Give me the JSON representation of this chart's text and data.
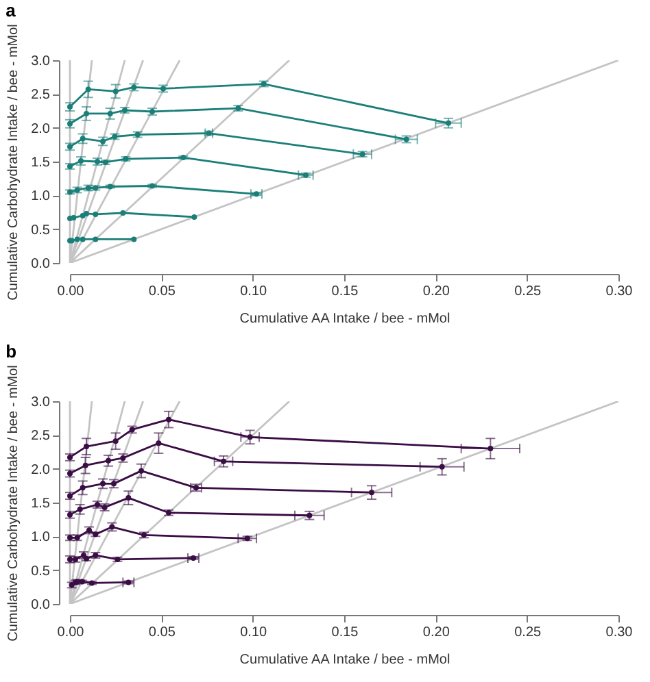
{
  "chart_data": [
    {
      "type": "line",
      "title": "a",
      "xlabel": "Cumulative AA Intake / bee - mMol",
      "ylabel": "Cumulative Carbohydrate Intake / bee - mMol",
      "xlim": [
        0,
        0.3
      ],
      "ylim": [
        0,
        3
      ],
      "xticks": [
        {
          "value": 0,
          "label": "0.00"
        },
        0.05,
        {
          "value": 0.1,
          "label": "0.10"
        },
        0.15,
        {
          "value": 0.2,
          "label": "0.20"
        },
        0.25,
        {
          "value": 0.3,
          "label": "0.30"
        }
      ],
      "yticks": [
        {
          "value": 0,
          "label": "0.0"
        },
        0.5,
        {
          "value": 1,
          "label": "1.0"
        },
        1.5,
        {
          "value": 2,
          "label": "2.0"
        },
        2.5,
        {
          "value": 3,
          "label": "3.0"
        }
      ],
      "grid": false,
      "legend": false,
      "marker": "circle",
      "line_style": "solid",
      "ref_lines": [
        {
          "axis": "x",
          "value": 0,
          "color": "#c4c4c4"
        }
      ],
      "series": [
        {
          "color": "#c4c4c4",
          "marker": "none",
          "x": [
            0,
            0.012
          ],
          "values": [
            0,
            3
          ]
        },
        {
          "color": "#c4c4c4",
          "marker": "none",
          "x": [
            0,
            0.03
          ],
          "values": [
            0,
            3
          ]
        },
        {
          "color": "#c4c4c4",
          "marker": "none",
          "x": [
            0,
            0.04
          ],
          "values": [
            0,
            3
          ]
        },
        {
          "color": "#c4c4c4",
          "marker": "none",
          "x": [
            0,
            0.06
          ],
          "values": [
            0,
            3
          ]
        },
        {
          "color": "#c4c4c4",
          "marker": "none",
          "x": [
            0,
            0.12
          ],
          "values": [
            0,
            3
          ]
        },
        {
          "color": "#c4c4c4",
          "marker": "none",
          "x": [
            0,
            0.3
          ],
          "values": [
            0,
            3
          ]
        },
        {
          "color": "#1b7f79",
          "x": [
            0,
            0.01,
            0.025,
            0.035,
            0.051,
            0.106,
            0.207
          ],
          "values": [
            2.31,
            2.57,
            2.54,
            2.6,
            2.58,
            2.65,
            2.07
          ],
          "errors": [
            0.06,
            0.12,
            0.1,
            0.05,
            0.05,
            0.04,
            0.07
          ],
          "xerrors": [
            null,
            null,
            null,
            null,
            null,
            null,
            0.007
          ]
        },
        {
          "color": "#1b7f79",
          "x": [
            0,
            0.009,
            0.022,
            0.03,
            0.045,
            0.092,
            0.184
          ],
          "values": [
            2.06,
            2.21,
            2.21,
            2.26,
            2.24,
            2.29,
            1.83
          ],
          "errors": [
            0.06,
            0.1,
            0.08,
            0.04,
            0.05,
            0.04,
            0.05
          ],
          "xerrors": [
            null,
            null,
            null,
            null,
            null,
            null,
            0.006
          ]
        },
        {
          "color": "#1b7f79",
          "x": [
            0,
            0.007,
            0.018,
            0.0245,
            0.037,
            0.076,
            0.16
          ],
          "values": [
            1.72,
            1.84,
            1.8,
            1.87,
            1.9,
            1.92,
            1.61
          ],
          "errors": [
            0.05,
            0.07,
            0.06,
            0.04,
            0.04,
            0.03,
            0.04
          ],
          "xerrors": [
            null,
            null,
            null,
            null,
            null,
            0.002,
            0.005
          ]
        },
        {
          "color": "#1b7f79",
          "x": [
            0,
            0.006,
            0.015,
            0.0195,
            0.0305,
            0.062,
            0.129
          ],
          "values": [
            1.43,
            1.51,
            1.5,
            1.49,
            1.54,
            1.56,
            1.3
          ],
          "errors": [
            0.04,
            0.06,
            0.05,
            0.03,
            0.03,
            0.02,
            0.03
          ],
          "xerrors": [
            null,
            null,
            null,
            null,
            null,
            null,
            0.004
          ]
        },
        {
          "color": "#1b7f79",
          "x": [
            0,
            0.004,
            0.01,
            0.014,
            0.022,
            0.045,
            0.102
          ],
          "values": [
            1.05,
            1.08,
            1.11,
            1.11,
            1.13,
            1.14,
            1.02
          ],
          "errors": [
            0.03,
            0.04,
            0.04,
            0.03,
            0.02,
            0.02,
            0.02
          ],
          "xerrors": [
            null,
            null,
            null,
            null,
            null,
            null,
            0.003
          ]
        },
        {
          "color": "#1b7f79",
          "x": [
            0,
            0.002,
            0.007,
            0.009,
            0.014,
            0.029,
            0.068
          ],
          "values": [
            0.66,
            0.67,
            0.7,
            0.73,
            0.72,
            0.74,
            0.68
          ]
        },
        {
          "color": "#1b7f79",
          "x": [
            0,
            0.001,
            0.004,
            0.007,
            0.014,
            0.035
          ],
          "values": [
            0.33,
            0.33,
            0.35,
            0.35,
            0.35,
            0.35
          ]
        }
      ]
    },
    {
      "type": "line",
      "title": "b",
      "xlabel": "Cumulative AA Intake / bee - mMol",
      "ylabel": "Cumulative Carbohydrate Intake / bee - mMol",
      "xlim": [
        0,
        0.3
      ],
      "ylim": [
        0,
        3
      ],
      "xticks": [
        {
          "value": 0,
          "label": "0.00"
        },
        0.05,
        {
          "value": 0.1,
          "label": "0.10"
        },
        0.15,
        {
          "value": 0.2,
          "label": "0.20"
        },
        0.25,
        {
          "value": 0.3,
          "label": "0.30"
        }
      ],
      "yticks": [
        {
          "value": 0,
          "label": "0.0"
        },
        0.5,
        {
          "value": 1,
          "label": "1.0"
        },
        1.5,
        {
          "value": 2,
          "label": "2.0"
        },
        2.5,
        {
          "value": 3,
          "label": "3.0"
        }
      ],
      "grid": false,
      "legend": false,
      "marker": "circle",
      "line_style": "solid",
      "ref_lines": [
        {
          "axis": "x",
          "value": 0,
          "color": "#c4c4c4"
        }
      ],
      "series": [
        {
          "color": "#c4c4c4",
          "marker": "none",
          "x": [
            0,
            0.012
          ],
          "values": [
            0,
            3
          ]
        },
        {
          "color": "#c4c4c4",
          "marker": "none",
          "x": [
            0,
            0.03
          ],
          "values": [
            0,
            3
          ]
        },
        {
          "color": "#c4c4c4",
          "marker": "none",
          "x": [
            0,
            0.04
          ],
          "values": [
            0,
            3
          ]
        },
        {
          "color": "#c4c4c4",
          "marker": "none",
          "x": [
            0,
            0.06
          ],
          "values": [
            0,
            3
          ]
        },
        {
          "color": "#c4c4c4",
          "marker": "none",
          "x": [
            0,
            0.12
          ],
          "values": [
            0,
            3
          ]
        },
        {
          "color": "#c4c4c4",
          "marker": "none",
          "x": [
            0,
            0.3
          ],
          "values": [
            0,
            3
          ]
        },
        {
          "color": "#3a0d45",
          "x": [
            0,
            0.009,
            0.025,
            0.034,
            0.054,
            0.0985,
            0.23
          ],
          "values": [
            2.17,
            2.33,
            2.41,
            2.58,
            2.73,
            2.47,
            2.3
          ],
          "errors": [
            0.05,
            0.12,
            0.12,
            0.05,
            0.12,
            0.1,
            0.15
          ],
          "xerrors": [
            null,
            null,
            null,
            null,
            null,
            0.005,
            0.016
          ]
        },
        {
          "color": "#3a0d45",
          "x": [
            0,
            0.0085,
            0.021,
            0.029,
            0.0485,
            0.084,
            0.2035
          ],
          "values": [
            1.93,
            2.05,
            2.12,
            2.16,
            2.38,
            2.11,
            2.03
          ],
          "errors": [
            0.05,
            0.12,
            0.08,
            0.06,
            0.15,
            0.08,
            0.12
          ],
          "xerrors": [
            null,
            null,
            null,
            null,
            null,
            0.005,
            0.012
          ]
        },
        {
          "color": "#3a0d45",
          "x": [
            0,
            0.007,
            0.018,
            0.024,
            0.039,
            0.069,
            0.165
          ],
          "values": [
            1.6,
            1.72,
            1.78,
            1.78,
            1.97,
            1.72,
            1.65
          ],
          "errors": [
            0.05,
            0.1,
            0.07,
            0.06,
            0.1,
            0.05,
            0.1
          ],
          "xerrors": [
            null,
            null,
            null,
            null,
            null,
            0.003,
            0.011
          ]
        },
        {
          "color": "#3a0d45",
          "x": [
            0,
            0.0055,
            0.015,
            0.019,
            0.032,
            0.054,
            0.131
          ],
          "values": [
            1.32,
            1.4,
            1.47,
            1.43,
            1.57,
            1.35,
            1.31
          ],
          "errors": [
            0.05,
            0.07,
            0.05,
            0.05,
            0.1,
            0.04,
            0.06
          ],
          "xerrors": [
            null,
            null,
            null,
            null,
            null,
            null,
            0.008
          ]
        },
        {
          "color": "#3a0d45",
          "x": [
            0,
            0.004,
            0.0105,
            0.014,
            0.023,
            0.0405,
            0.097
          ],
          "values": [
            0.98,
            0.98,
            1.09,
            1.03,
            1.14,
            1.02,
            0.97
          ],
          "errors": [
            0.04,
            0.04,
            0.05,
            0.03,
            0.06,
            0.04,
            0.03
          ],
          "xerrors": [
            null,
            null,
            null,
            null,
            null,
            null,
            0.005
          ]
        },
        {
          "color": "#3a0d45",
          "x": [
            0,
            0.003,
            0.0075,
            0.009,
            0.014,
            0.026,
            0.0675
          ],
          "values": [
            0.66,
            0.66,
            0.72,
            0.67,
            0.72,
            0.66,
            0.68
          ],
          "errors": [
            0.05,
            0.04,
            0.05,
            0.03,
            0.04,
            0.03,
            0.02
          ],
          "xerrors": [
            null,
            null,
            null,
            null,
            null,
            null,
            0.003
          ]
        },
        {
          "color": "#3a0d45",
          "x": [
            0.001,
            0.003,
            0.004,
            0.0068,
            0.012,
            0.032
          ],
          "values": [
            0.28,
            0.32,
            0.33,
            0.33,
            0.31,
            0.32
          ],
          "errors": [
            0.04,
            0.03,
            0.03,
            0.02,
            0.02,
            0.02
          ],
          "xerrors": [
            null,
            null,
            null,
            null,
            null,
            0.003
          ]
        }
      ]
    }
  ]
}
